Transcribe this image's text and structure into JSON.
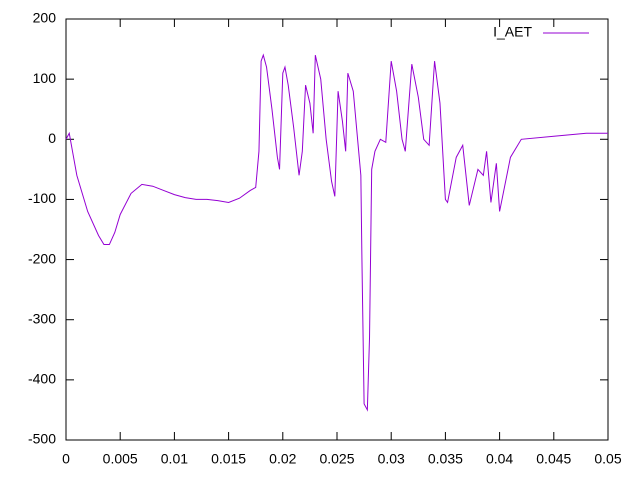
{
  "chart_data": {
    "type": "line",
    "x": [
      0,
      0.0003,
      0.0006,
      0.001,
      0.002,
      0.003,
      0.0035,
      0.004,
      0.0045,
      0.005,
      0.006,
      0.007,
      0.008,
      0.009,
      0.01,
      0.011,
      0.012,
      0.013,
      0.014,
      0.015,
      0.016,
      0.017,
      0.0175,
      0.0178,
      0.018,
      0.0182,
      0.0185,
      0.019,
      0.0195,
      0.0197,
      0.02,
      0.0202,
      0.0205,
      0.021,
      0.0215,
      0.0218,
      0.0221,
      0.0225,
      0.0228,
      0.023,
      0.0235,
      0.024,
      0.0245,
      0.0248,
      0.0251,
      0.0255,
      0.0258,
      0.026,
      0.0265,
      0.027,
      0.0272,
      0.0273,
      0.0275,
      0.0278,
      0.028,
      0.0282,
      0.0285,
      0.029,
      0.0295,
      0.03,
      0.0305,
      0.031,
      0.0313,
      0.0319,
      0.0325,
      0.033,
      0.0335,
      0.034,
      0.0345,
      0.035,
      0.0352,
      0.036,
      0.0366,
      0.0372,
      0.038,
      0.0385,
      0.0388,
      0.0392,
      0.0397,
      0.04,
      0.041,
      0.042,
      0.045,
      0.048,
      0.05
    ],
    "series": [
      {
        "name": "I_AET",
        "color": "#9400d3",
        "values": [
          0,
          10,
          -20,
          -60,
          -120,
          -160,
          -175,
          -175,
          -155,
          -125,
          -90,
          -75,
          -78,
          -85,
          -92,
          -97,
          -100,
          -100,
          -102,
          -105,
          -98,
          -85,
          -80,
          -20,
          130,
          140,
          120,
          50,
          -30,
          -50,
          110,
          120,
          90,
          20,
          -60,
          -20,
          90,
          60,
          10,
          140,
          100,
          0,
          -70,
          -95,
          80,
          30,
          -20,
          110,
          80,
          -20,
          -60,
          -200,
          -440,
          -450,
          -330,
          -50,
          -20,
          0,
          -5,
          130,
          80,
          0,
          -20,
          125,
          70,
          0,
          -10,
          130,
          60,
          -100,
          -105,
          -30,
          -10,
          -110,
          -50,
          -60,
          -20,
          -105,
          -40,
          -120,
          -30,
          0,
          5,
          10,
          10
        ]
      }
    ],
    "xlim": [
      0,
      0.05
    ],
    "xticks": [
      0,
      0.005,
      0.01,
      0.015,
      0.02,
      0.025,
      0.03,
      0.035,
      0.04,
      0.045,
      0.05
    ],
    "ylim": [
      -500,
      200
    ],
    "yticks": [
      -500,
      -400,
      -300,
      -200,
      -100,
      0,
      100,
      200
    ],
    "legend": "top-right"
  }
}
